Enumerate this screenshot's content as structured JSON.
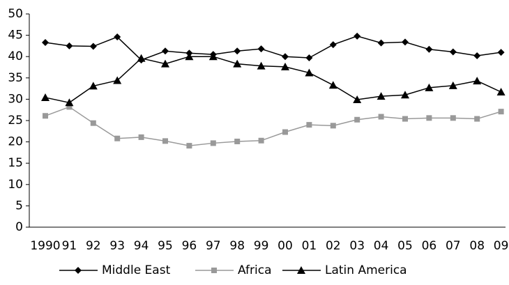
{
  "chart_data": {
    "type": "line",
    "categories": [
      "1990",
      "91",
      "92",
      "93",
      "94",
      "95",
      "96",
      "97",
      "98",
      "99",
      "00",
      "01",
      "02",
      "03",
      "04",
      "05",
      "06",
      "07",
      "08",
      "09"
    ],
    "series": [
      {
        "name": "Middle East",
        "color": "#000000",
        "marker": "diamond",
        "values": [
          43.3,
          42.5,
          42.4,
          44.6,
          39.2,
          41.3,
          40.8,
          40.5,
          41.3,
          41.8,
          40.0,
          39.7,
          42.8,
          44.8,
          43.2,
          43.4,
          41.7,
          41.1,
          40.2,
          41.0
        ]
      },
      {
        "name": "Africa",
        "color": "#999999",
        "marker": "square",
        "values": [
          26.1,
          28.2,
          24.4,
          20.8,
          21.1,
          20.2,
          19.1,
          19.7,
          20.1,
          20.3,
          22.3,
          24.0,
          23.8,
          25.2,
          25.9,
          25.4,
          25.6,
          25.6,
          25.4,
          27.1
        ]
      },
      {
        "name": "Latin America",
        "color": "#000000",
        "marker": "triangle",
        "values": [
          30.4,
          29.2,
          33.1,
          34.4,
          39.6,
          38.3,
          40.0,
          40.0,
          38.3,
          37.8,
          37.6,
          36.2,
          33.3,
          29.9,
          30.7,
          31.0,
          32.7,
          33.2,
          34.3,
          31.7
        ]
      }
    ],
    "ylim": [
      0,
      50
    ],
    "yticks": [
      0,
      5,
      10,
      15,
      20,
      25,
      30,
      35,
      40,
      45,
      50
    ],
    "grid": false,
    "legend": "bottom"
  }
}
